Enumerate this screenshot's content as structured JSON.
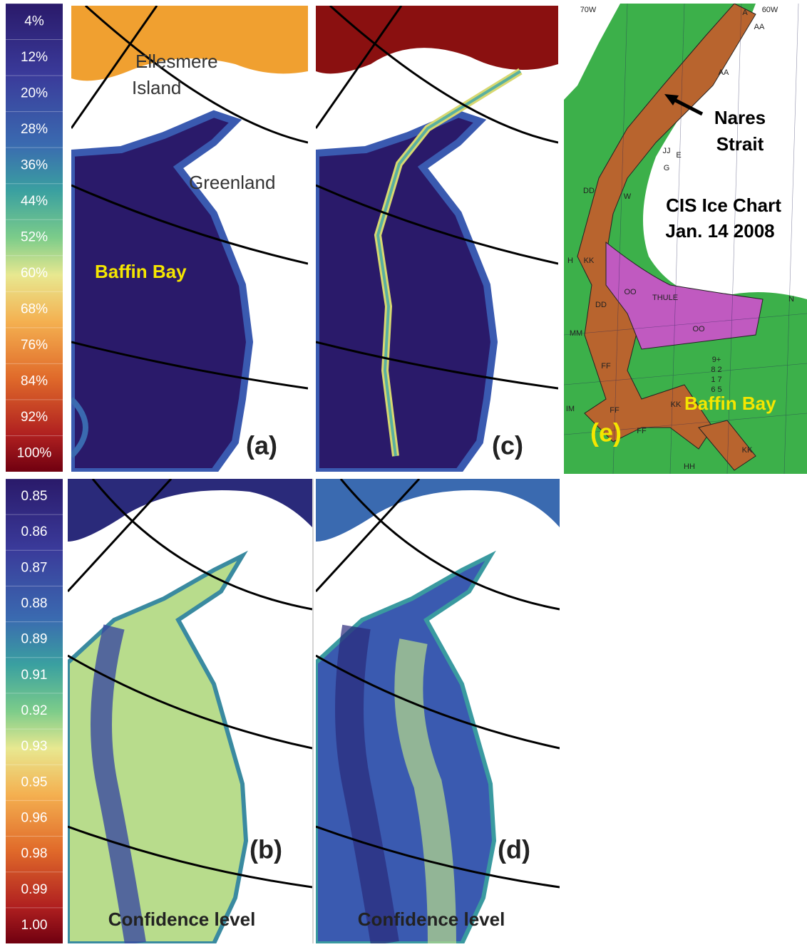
{
  "top_colorbar": {
    "labels": [
      "4%",
      "12%",
      "20%",
      "28%",
      "36%",
      "44%",
      "52%",
      "60%",
      "68%",
      "76%",
      "84%",
      "92%",
      "100%"
    ]
  },
  "bottom_colorbar": {
    "labels": [
      "0.85",
      "0.86",
      "0.87",
      "0.88",
      "0.89",
      "0.91",
      "0.92",
      "0.93",
      "0.95",
      "0.96",
      "0.98",
      "0.99",
      "1.00"
    ]
  },
  "panel_a": {
    "label": "(a)",
    "place_1": "Ellesmere",
    "place_2": "Island",
    "place_3": "Greenland",
    "place_4": "Baffin Bay"
  },
  "panel_b": {
    "label": "(b)",
    "caption": "Confidence level"
  },
  "panel_c": {
    "label": "(c)"
  },
  "panel_d": {
    "label": "(d)",
    "caption": "Confidence level"
  },
  "panel_e": {
    "label": "(e)",
    "arrow_1": "Nares",
    "arrow_2": "Strait",
    "title_1": "CIS Ice Chart",
    "title_2": "Jan. 14 2008",
    "place": "Baffin Bay",
    "codes": [
      "70W",
      "60W",
      "A",
      "AA",
      "AA",
      "JJ",
      "G",
      "E",
      "W",
      "DD",
      "H",
      "KK",
      "OO",
      "DD",
      "THULE",
      "OO",
      "MM",
      "FF",
      "FF",
      "KK",
      "IM",
      "FF",
      "KK",
      "HH",
      "9+",
      "8 2",
      "1 7",
      "6 5",
      "N"
    ]
  }
}
